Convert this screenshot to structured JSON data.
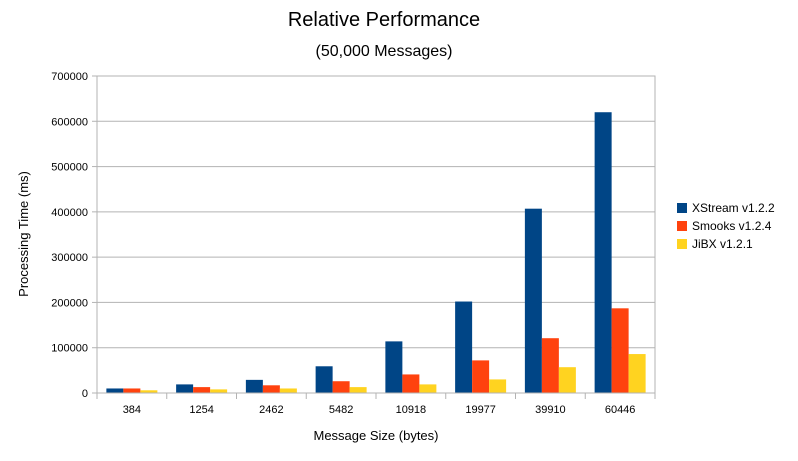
{
  "chart_data": {
    "type": "bar",
    "title": "Relative Performance",
    "subtitle": "(50,000 Messages)",
    "xlabel": "Message Size (bytes)",
    "ylabel": "Processing Time (ms)",
    "categories": [
      "384",
      "1254",
      "2462",
      "5482",
      "10918",
      "19977",
      "39910",
      "60446"
    ],
    "ylim": [
      0,
      700000
    ],
    "yticks": [
      0,
      100000,
      200000,
      300000,
      400000,
      500000,
      600000,
      700000
    ],
    "grid": true,
    "legend_position": "right",
    "series": [
      {
        "name": "XStream v1.2.2",
        "color": "#004586",
        "values": [
          10000,
          19000,
          29000,
          59000,
          114000,
          202000,
          407000,
          620000
        ]
      },
      {
        "name": "Smooks v1.2.4",
        "color": "#ff420e",
        "values": [
          10000,
          13000,
          17000,
          26000,
          41000,
          72000,
          121000,
          187000
        ]
      },
      {
        "name": "JiBX v1.2.1",
        "color": "#ffd320",
        "values": [
          6000,
          8000,
          10000,
          13000,
          19000,
          30000,
          57000,
          86000
        ]
      }
    ]
  }
}
